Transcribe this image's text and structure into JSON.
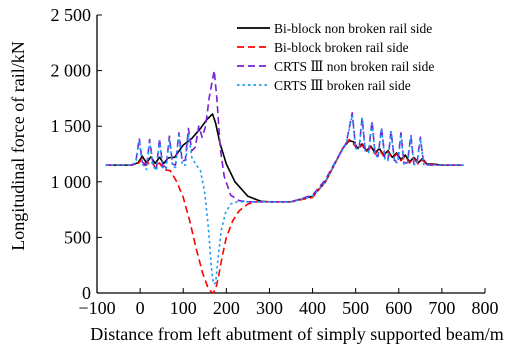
{
  "chart_data": {
    "type": "line",
    "title": "",
    "xlabel": "Distance from left abutment of simply supported beam/m",
    "ylabel": "Longitudinal force of rail/kN",
    "xlim": [
      -100,
      800
    ],
    "ylim": [
      0,
      2500
    ],
    "xticks": [
      -100,
      0,
      100,
      200,
      300,
      400,
      500,
      600,
      700,
      800
    ],
    "xtick_labels": [
      "−100",
      "0",
      "100",
      "200",
      "300",
      "400",
      "500",
      "600",
      "700",
      "800"
    ],
    "yticks": [
      0,
      500,
      1000,
      1500,
      2000,
      2500
    ],
    "ytick_labels": [
      "0",
      "500",
      "1 000",
      "1 500",
      "2 000",
      "2 500"
    ],
    "grid": false,
    "legend_position": "top-right",
    "series": [
      {
        "name": "Bi-block non broken rail side",
        "color": "#000000",
        "style": "solid",
        "x": [
          -80,
          -20,
          -5,
          5,
          15,
          25,
          35,
          45,
          55,
          65,
          80,
          100,
          120,
          140,
          155,
          168,
          175,
          185,
          200,
          220,
          250,
          280,
          300,
          350,
          400,
          430,
          450,
          470,
          485,
          495,
          505,
          515,
          525,
          535,
          545,
          555,
          565,
          575,
          585,
          595,
          605,
          615,
          625,
          635,
          645,
          655,
          665,
          680,
          700,
          720,
          750
        ],
        "y": [
          1150,
          1150,
          1170,
          1230,
          1170,
          1225,
          1165,
          1220,
          1165,
          1215,
          1220,
          1330,
          1390,
          1480,
          1560,
          1610,
          1530,
          1350,
          1160,
          1000,
          870,
          825,
          820,
          820,
          870,
          1000,
          1150,
          1300,
          1370,
          1360,
          1300,
          1340,
          1280,
          1320,
          1260,
          1300,
          1240,
          1280,
          1220,
          1260,
          1200,
          1240,
          1180,
          1220,
          1170,
          1210,
          1160,
          1160,
          1150,
          1150,
          1150
        ]
      },
      {
        "name": "Bi-block broken rail side",
        "color": "#ff0000",
        "style": "dashed",
        "x": [
          -80,
          -20,
          -5,
          5,
          15,
          25,
          35,
          45,
          55,
          70,
          85,
          100,
          115,
          130,
          145,
          158,
          168,
          175,
          182,
          190,
          200,
          215,
          230,
          250,
          270,
          300,
          350,
          400,
          430,
          450,
          470,
          485,
          495,
          505,
          515,
          525,
          535,
          545,
          555,
          565,
          575,
          585,
          595,
          605,
          615,
          625,
          635,
          645,
          655,
          665,
          680,
          700,
          720,
          750
        ],
        "y": [
          1150,
          1150,
          1160,
          1210,
          1150,
          1190,
          1130,
          1170,
          1110,
          1100,
          1000,
          860,
          650,
          400,
          180,
          40,
          0,
          30,
          150,
          320,
          500,
          650,
          740,
          800,
          820,
          820,
          820,
          860,
          1000,
          1150,
          1300,
          1380,
          1340,
          1290,
          1330,
          1270,
          1310,
          1250,
          1290,
          1230,
          1270,
          1210,
          1250,
          1190,
          1230,
          1170,
          1210,
          1160,
          1200,
          1155,
          1155,
          1150,
          1150,
          1150
        ]
      },
      {
        "name": "CRTS Ⅲ non broken rail side",
        "color": "#7a1fd6",
        "style": "dashed",
        "x": [
          -80,
          -20,
          -10,
          -2,
          5,
          15,
          22,
          30,
          38,
          45,
          52,
          60,
          68,
          75,
          82,
          90,
          98,
          105,
          112,
          120,
          128,
          136,
          144,
          152,
          160,
          166,
          172,
          178,
          186,
          195,
          210,
          230,
          250,
          280,
          300,
          350,
          400,
          430,
          450,
          470,
          478,
          485,
          492,
          500,
          508,
          515,
          522,
          530,
          538,
          545,
          552,
          560,
          568,
          575,
          582,
          590,
          598,
          605,
          612,
          620,
          628,
          635,
          642,
          650,
          658,
          665,
          672,
          685,
          700,
          720,
          750
        ],
        "y": [
          1150,
          1150,
          1180,
          1390,
          1180,
          1130,
          1380,
          1160,
          1120,
          1390,
          1150,
          1130,
          1410,
          1160,
          1150,
          1440,
          1180,
          1200,
          1480,
          1280,
          1310,
          1500,
          1400,
          1500,
          1750,
          1880,
          2000,
          1750,
          1300,
          1050,
          880,
          830,
          820,
          820,
          820,
          820,
          880,
          1020,
          1160,
          1300,
          1350,
          1480,
          1620,
          1310,
          1300,
          1580,
          1290,
          1270,
          1550,
          1250,
          1230,
          1490,
          1210,
          1200,
          1460,
          1190,
          1180,
          1440,
          1170,
          1170,
          1420,
          1160,
          1160,
          1400,
          1160,
          1155,
          1150,
          1150,
          1150,
          1150,
          1150
        ]
      },
      {
        "name": "CRTS Ⅲ broken rail side",
        "color": "#1a9cf0",
        "style": "dotted",
        "x": [
          -80,
          -20,
          -10,
          -2,
          5,
          15,
          22,
          30,
          38,
          45,
          52,
          60,
          68,
          75,
          82,
          90,
          98,
          105,
          112,
          120,
          130,
          140,
          150,
          158,
          165,
          170,
          175,
          180,
          188,
          198,
          210,
          225,
          240,
          260,
          300,
          350,
          400,
          430,
          450,
          470,
          478,
          485,
          492,
          500,
          508,
          515,
          522,
          530,
          538,
          545,
          552,
          560,
          568,
          575,
          582,
          590,
          598,
          605,
          612,
          620,
          628,
          635,
          642,
          650,
          658,
          665,
          672,
          685,
          700,
          720,
          750
        ],
        "y": [
          1150,
          1150,
          1170,
          1370,
          1160,
          1110,
          1360,
          1140,
          1100,
          1370,
          1130,
          1110,
          1390,
          1140,
          1130,
          1420,
          1150,
          1150,
          1430,
          1220,
          1150,
          1100,
          900,
          600,
          250,
          80,
          90,
          280,
          560,
          720,
          800,
          820,
          820,
          820,
          820,
          820,
          870,
          1000,
          1150,
          1290,
          1340,
          1470,
          1600,
          1300,
          1290,
          1570,
          1280,
          1260,
          1540,
          1240,
          1220,
          1480,
          1200,
          1190,
          1450,
          1180,
          1170,
          1430,
          1160,
          1160,
          1410,
          1155,
          1155,
          1390,
          1155,
          1150,
          1150,
          1150,
          1150,
          1150,
          1150
        ]
      }
    ]
  }
}
